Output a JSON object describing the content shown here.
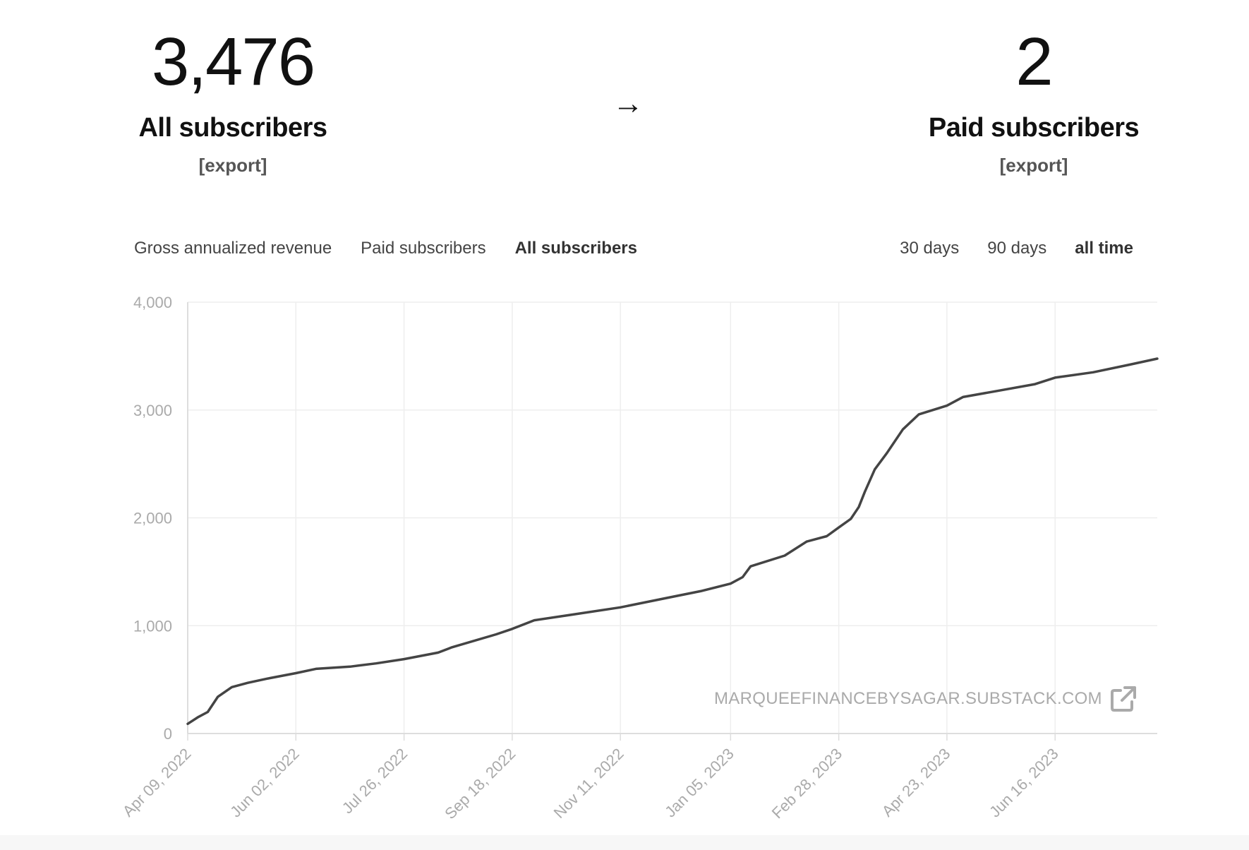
{
  "summary": {
    "all": {
      "count": "3,476",
      "label": "All subscribers",
      "export": "[export]"
    },
    "arrow": "→",
    "paid": {
      "count": "2",
      "label": "Paid subscribers",
      "export": "[export]"
    }
  },
  "tabs": [
    {
      "label": "Gross annualized revenue",
      "active": false
    },
    {
      "label": "Paid subscribers",
      "active": false
    },
    {
      "label": "All subscribers",
      "active": true
    }
  ],
  "ranges": [
    {
      "label": "30 days",
      "active": false
    },
    {
      "label": "90 days",
      "active": false
    },
    {
      "label": "all time",
      "active": true
    }
  ],
  "watermark": {
    "text": "MARQUEEFINANCEBYSAGAR.SUBSTACK.COM",
    "icon": "external-link-icon"
  },
  "colors": {
    "line": "#444444",
    "grid": "#eeeeee",
    "axis": "#dddddd",
    "tick_text": "#aaaaaa"
  },
  "chart_data": {
    "type": "line",
    "title": "",
    "xlabel": "",
    "ylabel": "",
    "ylim": [
      0,
      4000
    ],
    "yticks": [
      0,
      1000,
      2000,
      3000,
      4000
    ],
    "ytick_labels": [
      "0",
      "1,000",
      "2,000",
      "3,000",
      "4,000"
    ],
    "xticks": [
      "2022-04-09",
      "2022-06-02",
      "2022-07-26",
      "2022-09-18",
      "2022-11-11",
      "2023-01-05",
      "2023-02-28",
      "2023-04-23",
      "2023-06-16"
    ],
    "xtick_labels": [
      "Apr 09, 2022",
      "Jun 02, 2022",
      "Jul 26, 2022",
      "Sep 18, 2022",
      "Nov 11, 2022",
      "Jan 05, 2023",
      "Feb 28, 2023",
      "Apr 23, 2023",
      "Jun 16, 2023"
    ],
    "xlim": [
      "2022-04-09",
      "2023-08-06"
    ],
    "grid": true,
    "series": [
      {
        "x": [
          "2022-04-09",
          "2022-04-14",
          "2022-04-19",
          "2022-04-24",
          "2022-05-01",
          "2022-05-09",
          "2022-05-19",
          "2022-06-02",
          "2022-06-12",
          "2022-06-29",
          "2022-07-12",
          "2022-07-26",
          "2022-08-12",
          "2022-08-19",
          "2022-09-10",
          "2022-09-18",
          "2022-09-29",
          "2022-10-17",
          "2022-11-11",
          "2022-12-05",
          "2022-12-21",
          "2023-01-05",
          "2023-01-11",
          "2023-01-15",
          "2023-02-01",
          "2023-02-12",
          "2023-02-22",
          "2023-02-28",
          "2023-03-06",
          "2023-03-10",
          "2023-03-13",
          "2023-03-18",
          "2023-03-24",
          "2023-04-01",
          "2023-04-09",
          "2023-04-23",
          "2023-05-01",
          "2023-05-19",
          "2023-06-06",
          "2023-06-16",
          "2023-07-05",
          "2023-07-23",
          "2023-08-06"
        ],
        "y": [
          90,
          150,
          200,
          340,
          430,
          470,
          510,
          560,
          600,
          620,
          650,
          690,
          750,
          800,
          920,
          970,
          1050,
          1100,
          1170,
          1260,
          1320,
          1390,
          1450,
          1550,
          1650,
          1780,
          1830,
          1910,
          1990,
          2100,
          2240,
          2450,
          2600,
          2820,
          2960,
          3040,
          3120,
          3180,
          3240,
          3300,
          3350,
          3420,
          3476
        ]
      }
    ]
  }
}
